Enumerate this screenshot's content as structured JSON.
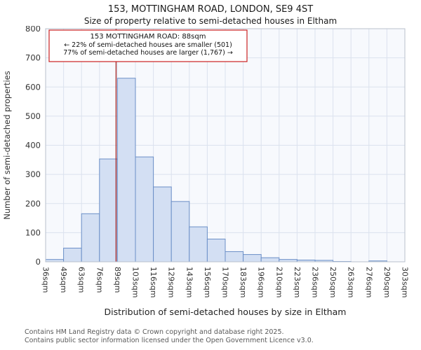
{
  "chart": {
    "title": "153, MOTTINGHAM ROAD, LONDON, SE9 4ST",
    "subtitle": "Size of property relative to semi-detached houses in Eltham"
  },
  "chart_data": {
    "type": "bar",
    "title": "153, MOTTINGHAM ROAD, LONDON, SE9 4ST",
    "subtitle": "Size of property relative to semi-detached houses in Eltham",
    "xlabel": "Distribution of semi-detached houses by size in Eltham",
    "ylabel": "Number of semi-detached properties",
    "ylim": [
      0,
      800
    ],
    "yticks": [
      0,
      100,
      200,
      300,
      400,
      500,
      600,
      700,
      800
    ],
    "grid": true,
    "legend_position": "none",
    "bin_edges_sqm": [
      36,
      49,
      63,
      76,
      89,
      103,
      116,
      129,
      143,
      156,
      170,
      183,
      196,
      210,
      223,
      236,
      250,
      263,
      276,
      290,
      303
    ],
    "tick_labels": [
      "36sqm",
      "49sqm",
      "63sqm",
      "76sqm",
      "89sqm",
      "103sqm",
      "116sqm",
      "129sqm",
      "143sqm",
      "156sqm",
      "170sqm",
      "183sqm",
      "196sqm",
      "210sqm",
      "223sqm",
      "236sqm",
      "250sqm",
      "263sqm",
      "276sqm",
      "290sqm",
      "303sqm"
    ],
    "values": [
      8,
      47,
      165,
      353,
      630,
      360,
      257,
      207,
      120,
      78,
      35,
      25,
      14,
      8,
      6,
      5,
      1,
      0,
      3,
      0
    ],
    "bar_fill": "#d3dff3",
    "bar_stroke": "#6b8fc7",
    "plot_bg": "#f7f9fd",
    "grid_color": "#dbe2ee",
    "marker": {
      "value_sqm": 88,
      "color": "#a02020"
    },
    "annotation": {
      "line1": "153 MOTTINGHAM ROAD: 88sqm",
      "line2": "← 22% of semi-detached houses are smaller (501)",
      "line3": "77% of semi-detached houses are larger (1,767) →",
      "border_color": "#cc2222"
    }
  },
  "footer": {
    "line1": "Contains HM Land Registry data © Crown copyright and database right 2025.",
    "line2": "Contains public sector information licensed under the Open Government Licence v3.0."
  }
}
